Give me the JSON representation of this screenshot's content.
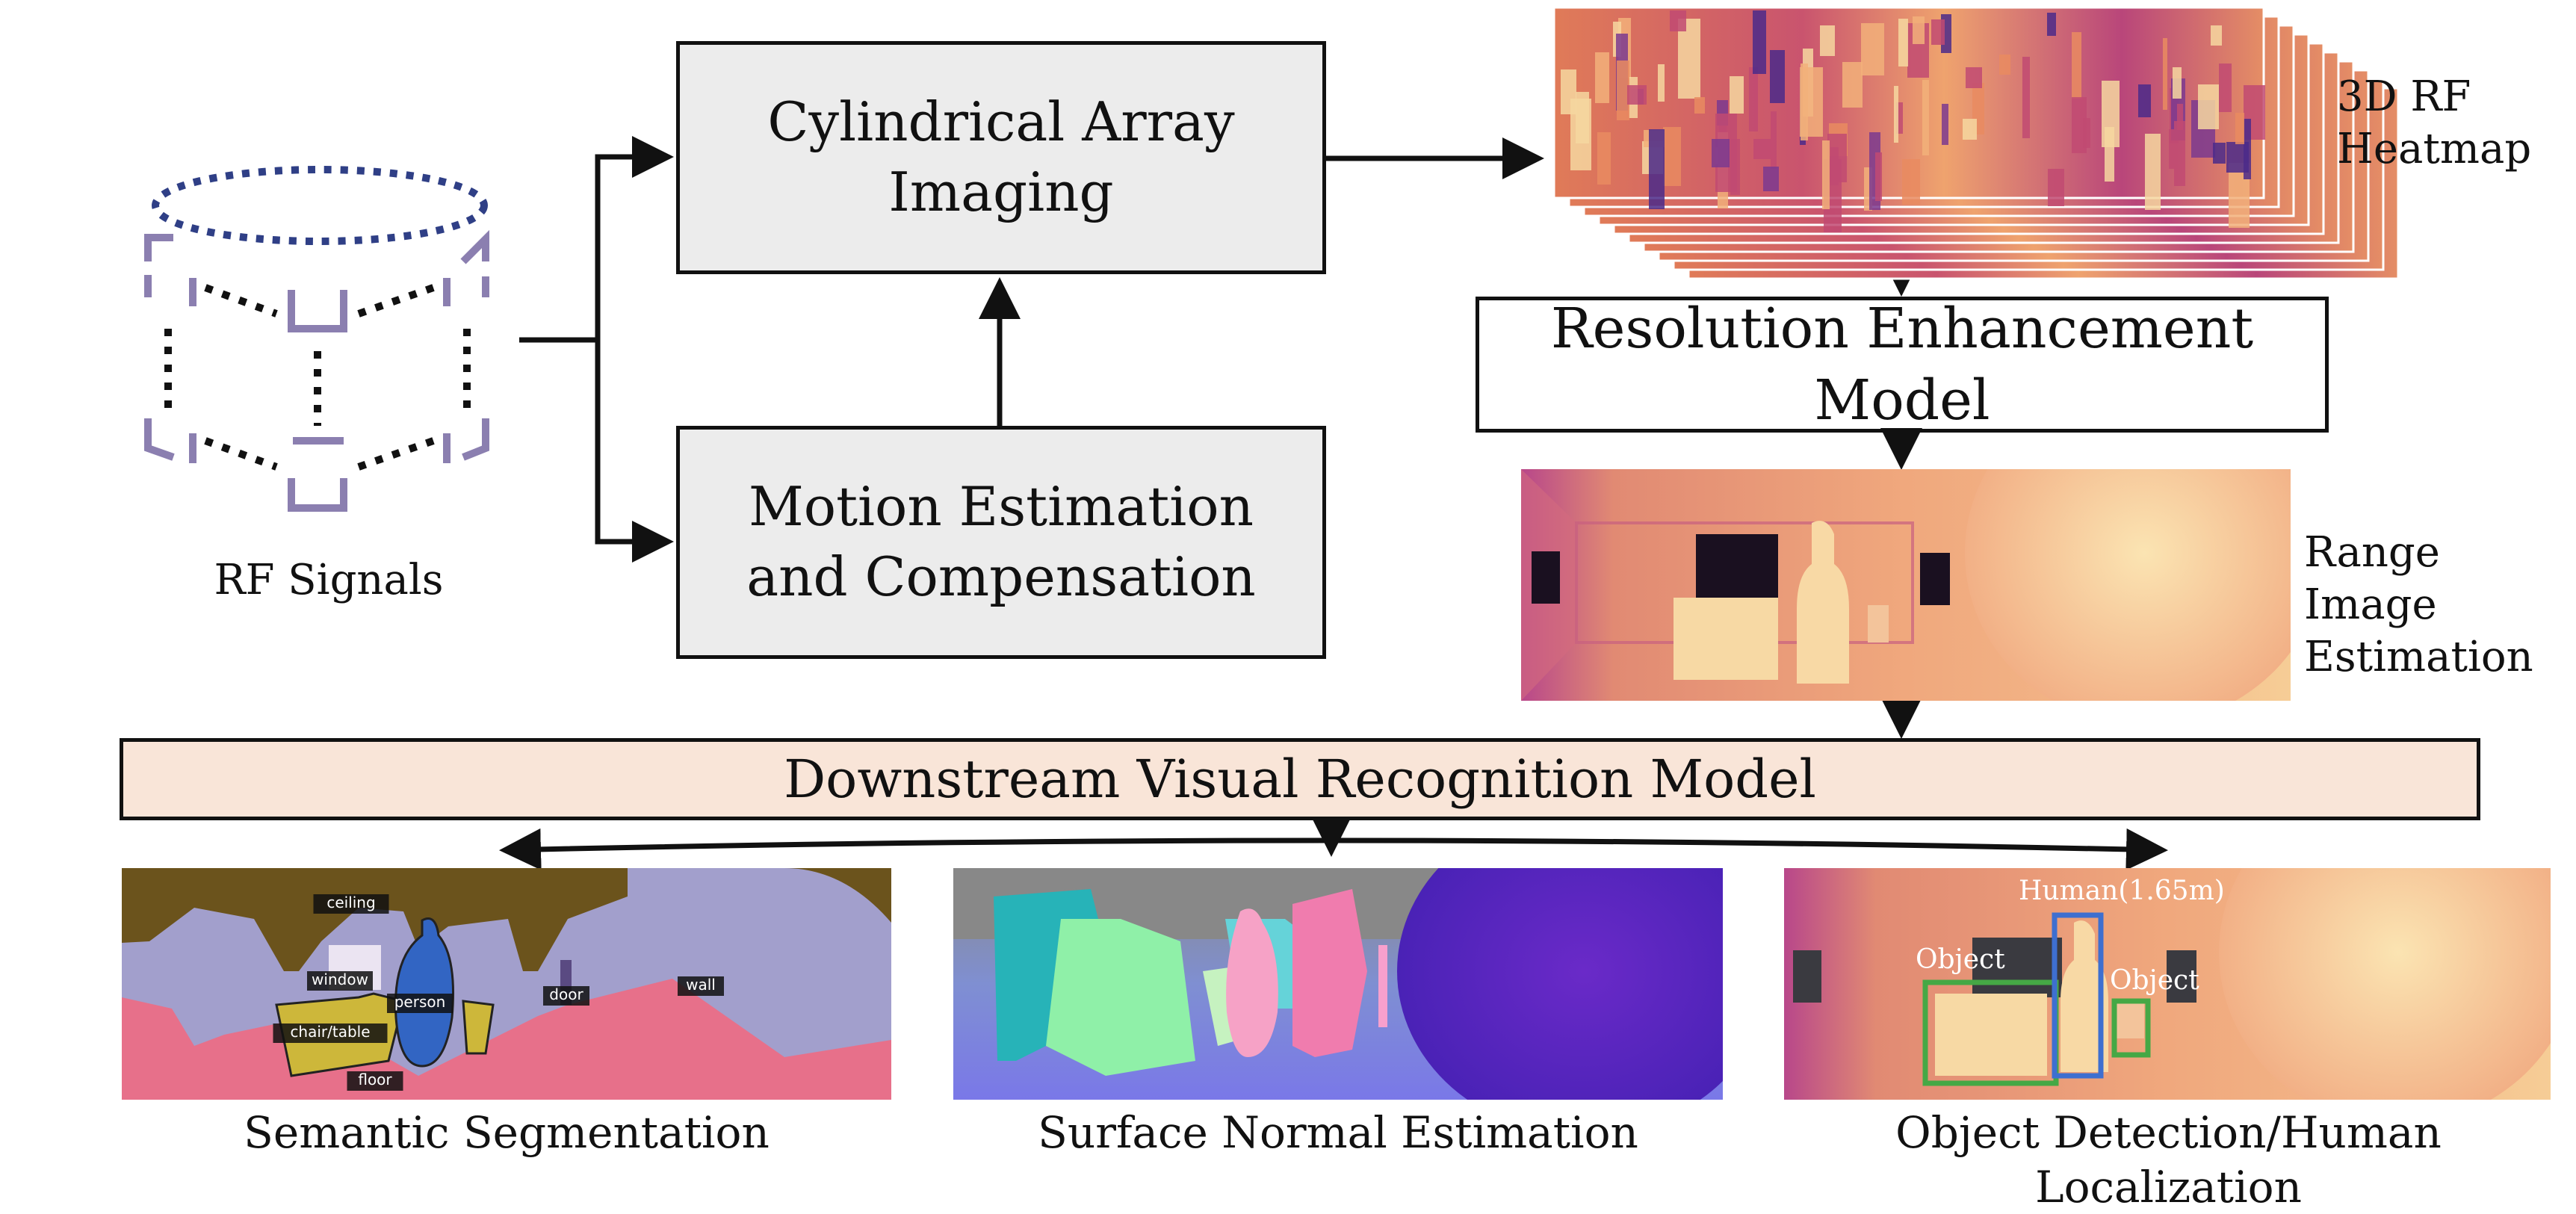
{
  "inputs": {
    "rf_signals": "RF Signals"
  },
  "blocks": {
    "cylindrical_imaging": "Cylindrical Array\nImaging",
    "motion_estimation": "Motion Estimation\nand Compensation",
    "resolution_enhancement": "Resolution Enhancement Model",
    "downstream_model": "Downstream Visual Recognition Model"
  },
  "outputs": {
    "heatmap": "3D RF\nHeatmap",
    "range_image": "Range Image\nEstimation"
  },
  "tasks": {
    "segmentation": {
      "caption": "Semantic Segmentation",
      "tags": [
        "ceiling",
        "window",
        "person",
        "chair/table",
        "door",
        "wall",
        "floor"
      ]
    },
    "surface_normal": {
      "caption": "Surface Normal Estimation"
    },
    "detection": {
      "caption": "Object Detection/Human Localization",
      "human_label": "Human(1.65m)",
      "object_label": "Object"
    }
  },
  "colors": {
    "antenna": "#8b7fb0",
    "ellipse": "#2f3f86",
    "block_fill": "#ececec",
    "downstream_fill": "#f9e5d8",
    "seg_wall": "#a29fcc",
    "seg_ceiling": "#6b531c",
    "seg_floor": "#e7708a",
    "seg_furniture": "#cdb73a",
    "seg_person": "#3265c3",
    "det_object": "#45a845",
    "det_human": "#3e6fd0"
  }
}
